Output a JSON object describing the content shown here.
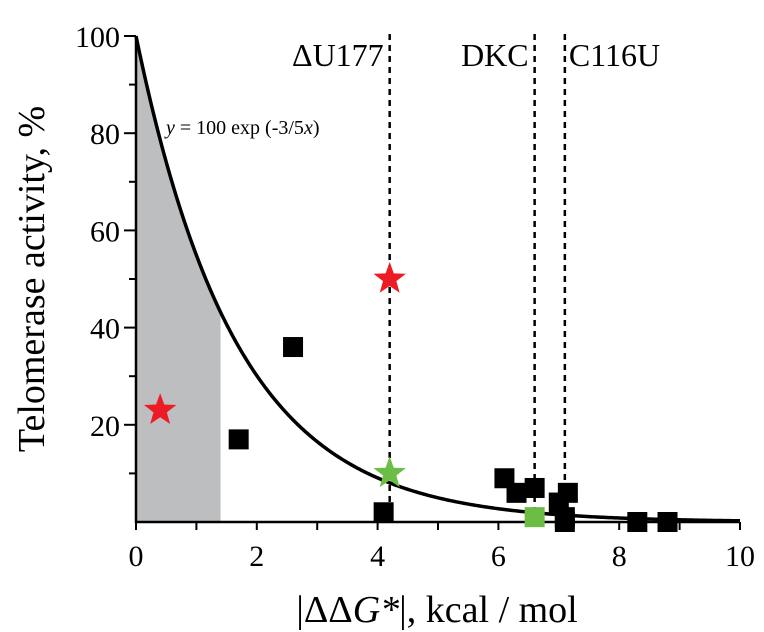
{
  "chart_data": {
    "type": "scatter",
    "title": "",
    "xlabel_parts": [
      "|ΔΔ",
      "G*",
      "|, kcal / mol"
    ],
    "ylabel": "Telomerase activity, %",
    "xlim": [
      0,
      10
    ],
    "ylim": [
      0,
      100
    ],
    "x_ticks": [
      0,
      2,
      4,
      6,
      8,
      10
    ],
    "y_ticks": [
      20,
      40,
      60,
      80,
      100
    ],
    "grid": false,
    "shaded_region": {
      "x": [
        0,
        1.4
      ],
      "color": "#bcbec0"
    },
    "curve": {
      "formula_parts": [
        "y",
        " = 100 exp (-3/5",
        "x",
        ")"
      ],
      "amplitude": 100,
      "rate": 0.6
    },
    "vertical_lines": [
      {
        "label": "ΔU177",
        "x": 4.2
      },
      {
        "label": "DKC",
        "x": 6.6
      },
      {
        "label": "C116U",
        "x": 7.1
      }
    ],
    "series": [
      {
        "marker": "square",
        "color": "#000000",
        "points": [
          [
            1.7,
            17
          ],
          [
            2.6,
            36
          ],
          [
            4.1,
            2
          ],
          [
            6.1,
            9
          ],
          [
            6.3,
            6
          ],
          [
            6.6,
            7
          ],
          [
            7.0,
            4
          ],
          [
            7.1,
            1
          ],
          [
            7.15,
            6
          ],
          [
            7.1,
            0
          ],
          [
            8.3,
            0
          ],
          [
            8.8,
            0
          ]
        ]
      },
      {
        "marker": "square",
        "color": "#6cbd45",
        "points": [
          [
            6.6,
            1
          ]
        ]
      },
      {
        "marker": "star",
        "color": "#ed1c24",
        "points": [
          [
            0.4,
            23
          ],
          [
            4.2,
            50
          ]
        ]
      },
      {
        "marker": "star",
        "color": "#6cbd45",
        "points": [
          [
            4.2,
            10
          ]
        ]
      }
    ]
  }
}
